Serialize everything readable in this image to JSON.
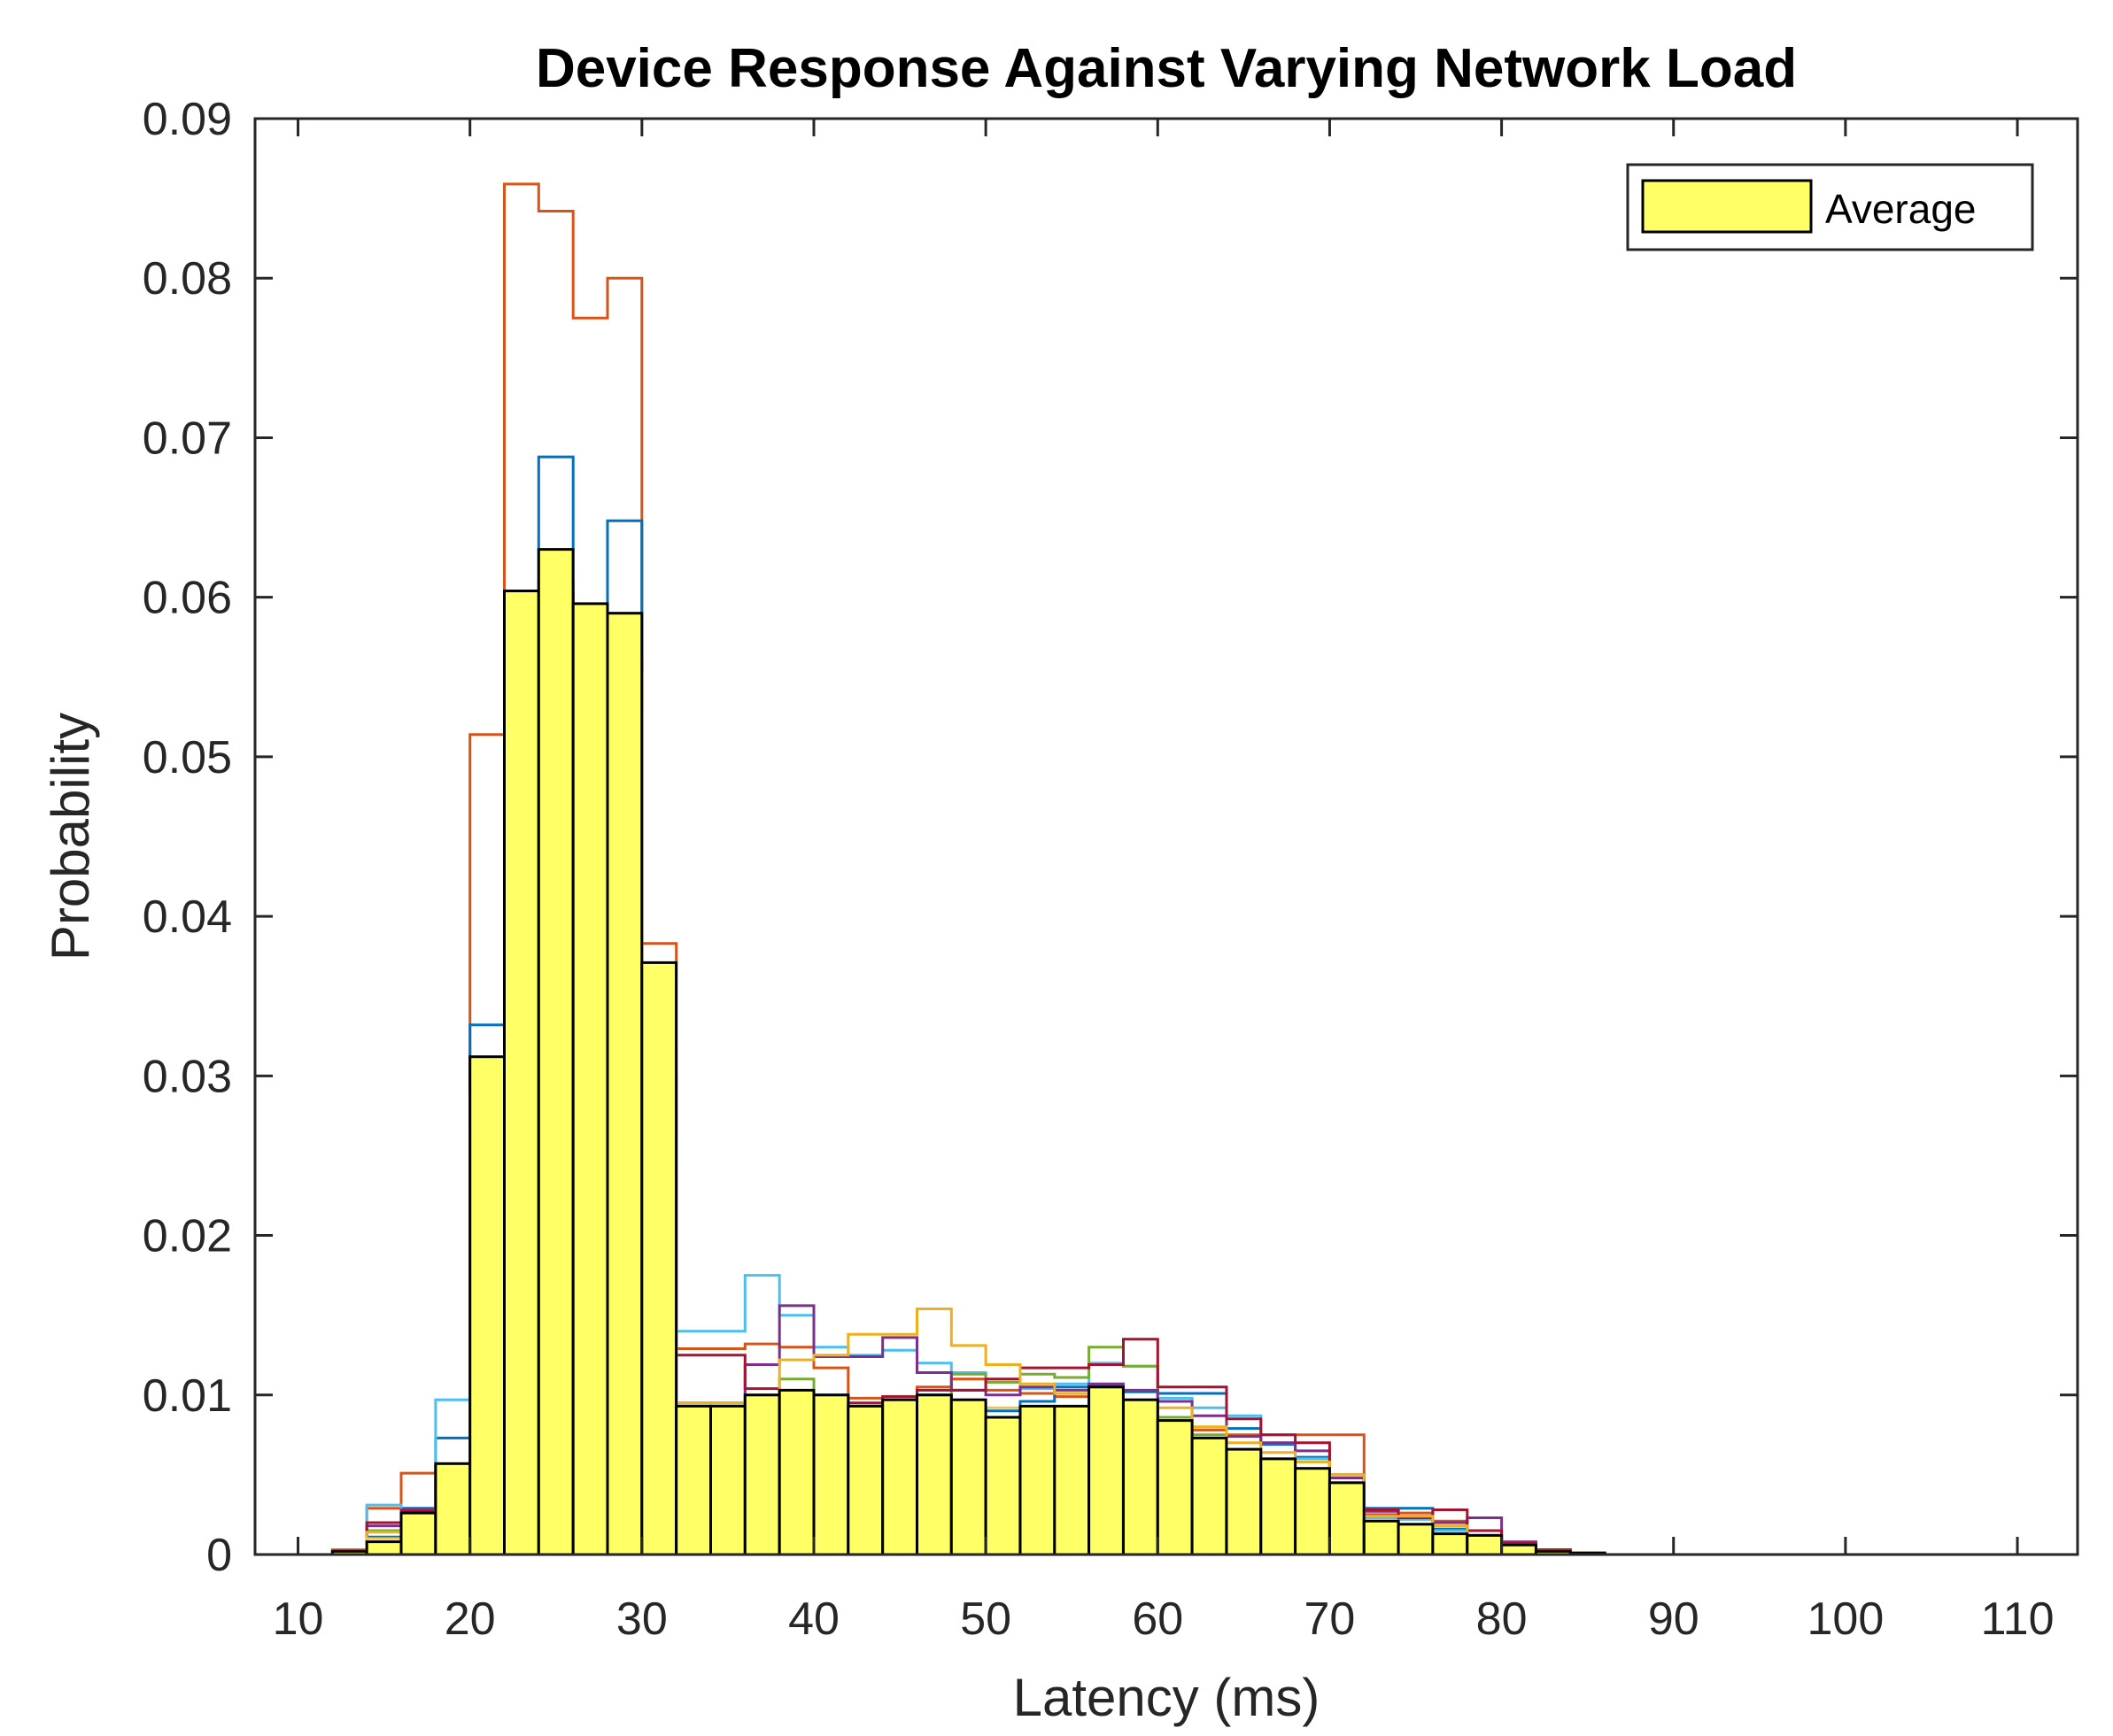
{
  "chart_data": {
    "type": "bar",
    "title": "Device Response Against Varying Network Load",
    "xlabel": "Latency (ms)",
    "ylabel": "Probability",
    "xlim": [
      7.5,
      113.5
    ],
    "ylim": [
      0,
      0.09
    ],
    "xticks": [
      10,
      20,
      30,
      40,
      50,
      60,
      70,
      80,
      90,
      100,
      110
    ],
    "yticks": [
      0,
      0.01,
      0.02,
      0.03,
      0.04,
      0.05,
      0.06,
      0.07,
      0.08,
      0.09
    ],
    "xtick_labels": [
      "10",
      "20",
      "30",
      "40",
      "50",
      "60",
      "70",
      "80",
      "90",
      "100",
      "110"
    ],
    "ytick_labels": [
      "0",
      "0.01",
      "0.02",
      "0.03",
      "0.04",
      "0.05",
      "0.06",
      "0.07",
      "0.08",
      "0.09"
    ],
    "bin_edges": [
      12,
      14,
      16,
      18,
      20,
      22,
      24,
      26,
      28,
      30,
      32,
      34,
      36,
      38,
      40,
      42,
      44,
      46,
      48,
      50,
      52,
      54,
      56,
      58,
      60,
      62,
      64,
      66,
      68,
      70,
      72,
      74,
      76,
      78,
      80,
      82,
      84,
      86,
      88
    ],
    "grid": false,
    "legend": {
      "position": "top-right",
      "entries": [
        "Average"
      ]
    },
    "average": {
      "name": "Average",
      "fill": "#ffff66",
      "edge": "#000000",
      "values": [
        0.0002,
        0.0008,
        0.0026,
        0.0057,
        0.0312,
        0.0604,
        0.063,
        0.0596,
        0.059,
        0.0371,
        0.0093,
        0.0093,
        0.01,
        0.0103,
        0.01,
        0.0093,
        0.0097,
        0.01,
        0.0097,
        0.0086,
        0.0093,
        0.0093,
        0.0105,
        0.0097,
        0.0084,
        0.0073,
        0.0066,
        0.006,
        0.0054,
        0.0045,
        0.0021,
        0.0019,
        0.0013,
        0.0012,
        0.0006,
        0.0002,
        0.0001,
        0.0
      ]
    },
    "series": [
      {
        "color": "#d95319",
        "values": [
          0.0003,
          0.0029,
          0.0051,
          0.0055,
          0.0514,
          0.0859,
          0.0842,
          0.0775,
          0.08,
          0.0383,
          0.0129,
          0.0129,
          0.0132,
          0.013,
          0.0117,
          0.0098,
          0.0099,
          0.0105,
          0.011,
          0.0103,
          0.0101,
          0.0099,
          0.0094,
          0.009,
          0.0079,
          0.0078,
          0.0075,
          0.0075,
          0.0075,
          0.0075,
          0.0025,
          0.0026,
          0.0021,
          0.0011,
          0.0004,
          0.0002,
          0.0001,
          0.0
        ]
      },
      {
        "color": "#0072bd",
        "values": [
          0.0002,
          0.0011,
          0.0029,
          0.0073,
          0.0332,
          0.053,
          0.0688,
          0.0587,
          0.0648,
          0.03,
          0.0095,
          0.0095,
          0.0098,
          0.0101,
          0.01,
          0.009,
          0.0096,
          0.01,
          0.0094,
          0.009,
          0.0096,
          0.0105,
          0.0106,
          0.0102,
          0.0101,
          0.0101,
          0.0079,
          0.0069,
          0.0061,
          0.005,
          0.0029,
          0.0029,
          0.0016,
          0.0012,
          0.0007,
          0.0003,
          0.0001,
          0.0
        ]
      },
      {
        "color": "#4dbeee",
        "values": [
          0.0001,
          0.0031,
          0.0021,
          0.0097,
          0.0295,
          0.0446,
          0.0574,
          0.0592,
          0.0545,
          0.0318,
          0.014,
          0.014,
          0.0175,
          0.015,
          0.013,
          0.0125,
          0.0128,
          0.012,
          0.0114,
          0.0108,
          0.0104,
          0.0107,
          0.012,
          0.0118,
          0.0098,
          0.0092,
          0.0087,
          0.007,
          0.006,
          0.0045,
          0.0023,
          0.0022,
          0.0015,
          0.001,
          0.0006,
          0.0002,
          0.0001,
          0.0
        ]
      },
      {
        "color": "#77ac30",
        "values": [
          0.0001,
          0.0015,
          0.0022,
          0.0047,
          0.0257,
          0.059,
          0.0599,
          0.059,
          0.0545,
          0.03,
          0.0047,
          0.0047,
          0.01,
          0.011,
          0.0095,
          0.0075,
          0.008,
          0.0095,
          0.0113,
          0.0108,
          0.0113,
          0.0111,
          0.013,
          0.0118,
          0.0086,
          0.0075,
          0.0064,
          0.006,
          0.005,
          0.004,
          0.002,
          0.0016,
          0.0012,
          0.001,
          0.0005,
          0.0002,
          0.0001,
          0.0
        ]
      },
      {
        "color": "#7e2f8e",
        "values": [
          0.0002,
          0.0018,
          0.0028,
          0.0055,
          0.031,
          0.0556,
          0.061,
          0.056,
          0.056,
          0.024,
          0.0092,
          0.0092,
          0.0119,
          0.0156,
          0.0124,
          0.0124,
          0.0136,
          0.0114,
          0.0103,
          0.01,
          0.0105,
          0.0103,
          0.0107,
          0.0103,
          0.0096,
          0.0087,
          0.0074,
          0.007,
          0.0065,
          0.0048,
          0.0027,
          0.0024,
          0.002,
          0.0023,
          0.0008,
          0.0003,
          0.0001,
          0.0
        ]
      },
      {
        "color": "#a2142f",
        "values": [
          0.0002,
          0.002,
          0.0027,
          0.0056,
          0.0305,
          0.0562,
          0.0603,
          0.0595,
          0.0559,
          0.0278,
          0.0125,
          0.0125,
          0.0104,
          0.0102,
          0.0097,
          0.0095,
          0.0099,
          0.0103,
          0.0103,
          0.011,
          0.0117,
          0.0117,
          0.0119,
          0.0135,
          0.0105,
          0.0105,
          0.0085,
          0.0075,
          0.007,
          0.005,
          0.0028,
          0.0023,
          0.0028,
          0.0015,
          0.0007,
          0.0003,
          0.0001,
          0.0
        ]
      },
      {
        "color": "#edb120",
        "values": [
          0.0001,
          0.0014,
          0.0024,
          0.0054,
          0.029,
          0.0535,
          0.059,
          0.059,
          0.0553,
          0.0218,
          0.0095,
          0.0095,
          0.0098,
          0.0122,
          0.0125,
          0.0138,
          0.0138,
          0.0154,
          0.0131,
          0.0119,
          0.0107,
          0.0101,
          0.0104,
          0.0095,
          0.0092,
          0.008,
          0.007,
          0.0064,
          0.0058,
          0.005,
          0.0024,
          0.0024,
          0.0018,
          0.0011,
          0.0006,
          0.0002,
          0.0001,
          0.0
        ]
      },
      {
        "color": "#f5c54a",
        "values": [
          0.0001,
          0.001,
          0.0019,
          0.0028,
          0.027,
          0.055,
          0.057,
          0.056,
          0.055,
          0.0296,
          0.0025,
          0.0025,
          0.0088,
          0.009,
          0.008,
          0.007,
          0.0092,
          0.0089,
          0.0094,
          0.0092,
          0.009,
          0.0085,
          0.0082,
          0.0085,
          0.0079,
          0.0068,
          0.0061,
          0.0058,
          0.0052,
          0.0045,
          0.0019,
          0.0018,
          0.0012,
          0.0009,
          0.0004,
          0.0002,
          0.0001,
          0.0
        ]
      },
      {
        "color": "#f0a040",
        "values": [
          0.0001,
          0.0007,
          0.0015,
          0.0027,
          0.026,
          0.054,
          0.056,
          0.0552,
          0.053,
          0.0259,
          0.0019,
          0.0019,
          0.0027,
          0.0027,
          0.0027,
          0.0027,
          0.0027,
          0.0027,
          0.0027,
          0.0027,
          0.0027,
          0.0033,
          0.0036,
          0.0038,
          0.004,
          0.004,
          0.0038,
          0.0036,
          0.0032,
          0.0029,
          0.0017,
          0.0014,
          0.001,
          0.0007,
          0.0003,
          0.0001,
          0.0,
          0.0
        ]
      }
    ]
  }
}
